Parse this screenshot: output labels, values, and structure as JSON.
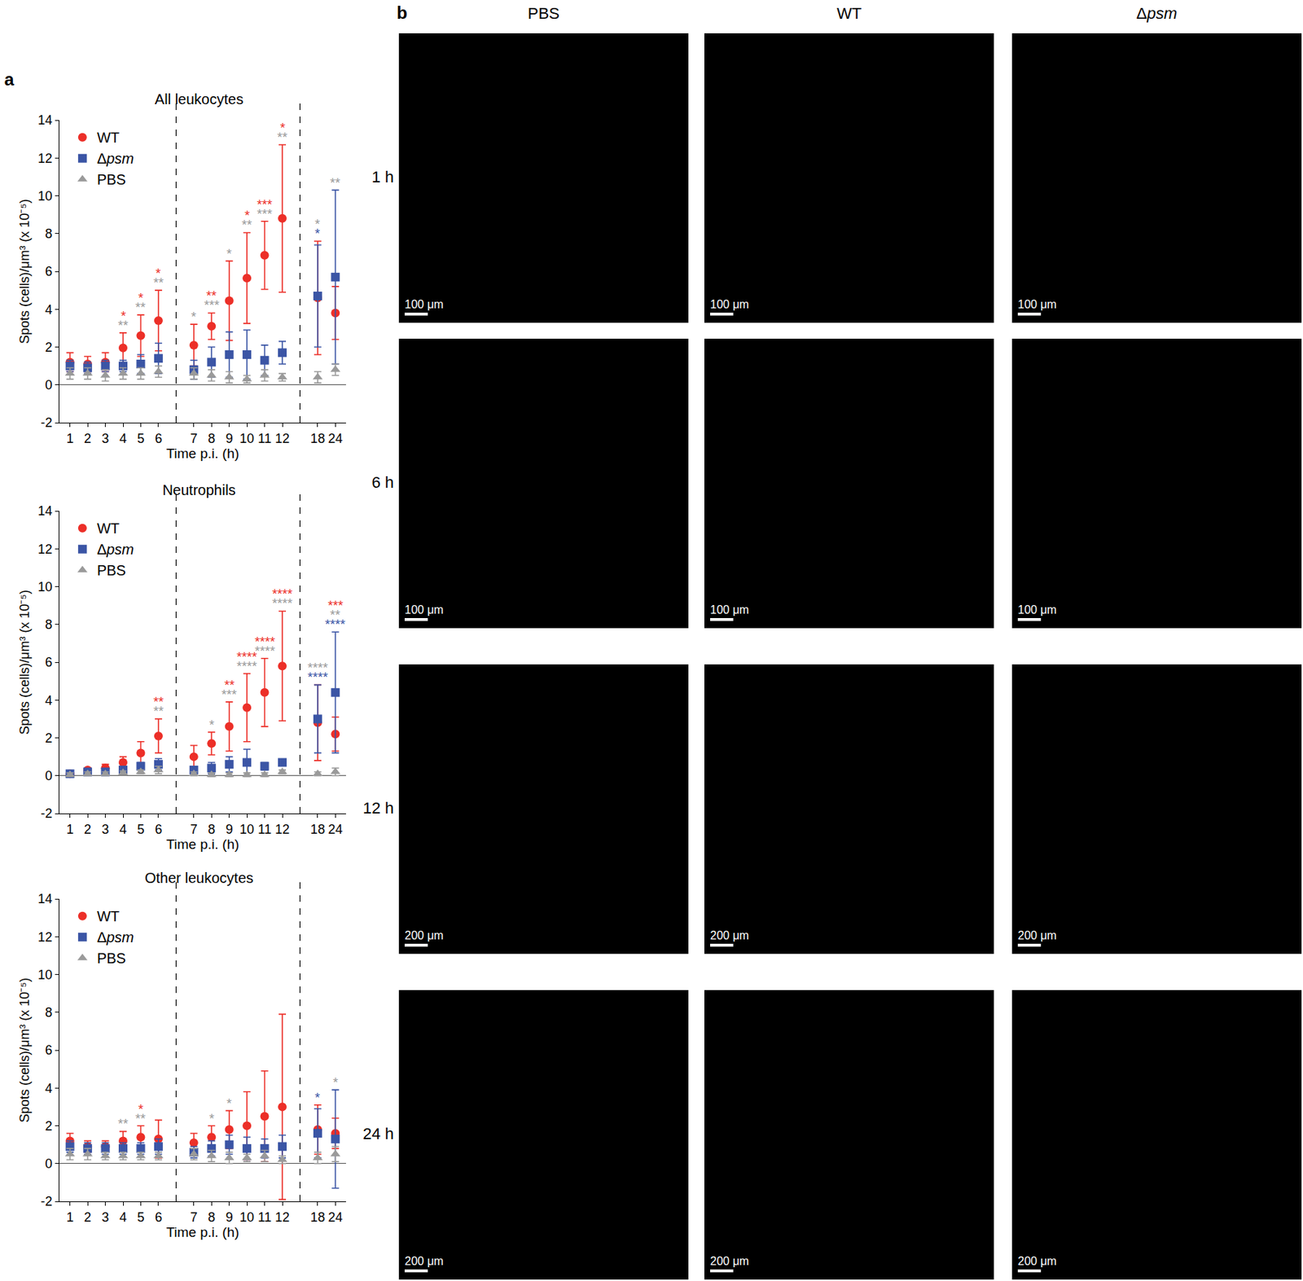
{
  "panel_labels": [
    "a",
    "b"
  ],
  "chart_data": [
    {
      "type": "scatter",
      "title": "All leukocytes",
      "x_label": "Time p.i. (h)",
      "y_label": "Spots (cells)/μm³ (x 10⁻⁵)",
      "categories": [
        "1",
        "2",
        "3",
        "4",
        "5",
        "6",
        null,
        "7",
        "8",
        "9",
        "10",
        "11",
        "12",
        null,
        "18",
        "24"
      ],
      "ylim": [
        -2,
        14
      ],
      "yticks": [
        -2,
        0,
        2,
        4,
        6,
        8,
        10,
        12,
        14
      ],
      "grid": false,
      "legend": "upper left",
      "series": [
        {
          "name": "WT",
          "color": "#ec2f28",
          "marker": "circle",
          "values": [
            1.2,
            1.1,
            1.2,
            1.95,
            2.6,
            3.4,
            null,
            2.1,
            3.1,
            4.45,
            5.65,
            6.85,
            8.8,
            null,
            4.6,
            3.8
          ],
          "errors": [
            0.5,
            0.4,
            0.5,
            0.8,
            1.1,
            1.6,
            null,
            1.1,
            0.7,
            2.1,
            2.4,
            1.8,
            3.9,
            null,
            3.0,
            1.4
          ]
        },
        {
          "name": "Δpsm",
          "color": "#3b55a5",
          "marker": "square",
          "values": [
            1.0,
            0.9,
            1.0,
            1.0,
            1.1,
            1.4,
            null,
            0.8,
            1.2,
            1.6,
            1.6,
            1.3,
            1.7,
            null,
            4.7,
            5.7
          ],
          "errors": [
            0.3,
            0.3,
            0.3,
            0.3,
            0.5,
            0.8,
            null,
            0.5,
            0.8,
            1.2,
            1.3,
            0.8,
            0.6,
            null,
            2.7,
            4.6
          ]
        },
        {
          "name": "PBS",
          "color": "#9a9a9a",
          "marker": "triangle-up",
          "values": [
            0.6,
            0.6,
            0.5,
            0.6,
            0.6,
            0.7,
            null,
            0.6,
            0.5,
            0.4,
            0.3,
            0.5,
            0.4,
            null,
            0.4,
            0.8
          ],
          "errors": [
            0.3,
            0.3,
            0.3,
            0.3,
            0.3,
            0.3,
            null,
            0.3,
            0.3,
            0.3,
            0.2,
            0.3,
            0.2,
            null,
            0.3,
            0.3
          ]
        }
      ],
      "annotations": [
        {
          "x": "4",
          "text": "*",
          "color": "#ec2f28"
        },
        {
          "x": "4",
          "text": "**",
          "color": "#9a9a9a"
        },
        {
          "x": "5",
          "text": "*",
          "color": "#ec2f28"
        },
        {
          "x": "5",
          "text": "**",
          "color": "#9a9a9a"
        },
        {
          "x": "6",
          "text": "*",
          "color": "#ec2f28"
        },
        {
          "x": "6",
          "text": "**",
          "color": "#9a9a9a"
        },
        {
          "x": "7",
          "text": "*",
          "color": "#9a9a9a"
        },
        {
          "x": "8",
          "text": "**",
          "color": "#ec2f28"
        },
        {
          "x": "8",
          "text": "***",
          "color": "#9a9a9a"
        },
        {
          "x": "9",
          "text": "*",
          "color": "#9a9a9a"
        },
        {
          "x": "10",
          "text": "*",
          "color": "#ec2f28"
        },
        {
          "x": "10",
          "text": "**",
          "color": "#9a9a9a"
        },
        {
          "x": "11",
          "text": "***",
          "color": "#ec2f28"
        },
        {
          "x": "11",
          "text": "***",
          "color": "#9a9a9a"
        },
        {
          "x": "12",
          "text": "*",
          "color": "#ec2f28"
        },
        {
          "x": "12",
          "text": "**",
          "color": "#9a9a9a"
        },
        {
          "x": "18",
          "text": "*",
          "color": "#9a9a9a"
        },
        {
          "x": "18",
          "text": "*",
          "color": "#3b55a5"
        },
        {
          "x": "24",
          "text": "**",
          "color": "#9a9a9a"
        }
      ]
    },
    {
      "type": "scatter",
      "title": "Neutrophils",
      "x_label": "Time p.i. (h)",
      "y_label": "Spots (cells)/μm³ (x 10⁻⁵)",
      "categories": [
        "1",
        "2",
        "3",
        "4",
        "5",
        "6",
        null,
        "7",
        "8",
        "9",
        "10",
        "11",
        "12",
        null,
        "18",
        "24"
      ],
      "ylim": [
        -2,
        14
      ],
      "yticks": [
        -2,
        0,
        2,
        4,
        6,
        8,
        10,
        12,
        14
      ],
      "grid": false,
      "legend": "upper left",
      "series": [
        {
          "name": "WT",
          "color": "#ec2f28",
          "marker": "circle",
          "values": [
            0.1,
            0.3,
            0.4,
            0.7,
            1.2,
            2.1,
            null,
            1.0,
            1.7,
            2.6,
            3.6,
            4.4,
            5.8,
            null,
            2.8,
            2.2
          ],
          "errors": [
            0.1,
            0.1,
            0.2,
            0.3,
            0.6,
            0.9,
            null,
            0.6,
            0.6,
            1.3,
            1.8,
            1.8,
            2.9,
            null,
            2.0,
            0.9
          ]
        },
        {
          "name": "Δpsm",
          "color": "#3b55a5",
          "marker": "square",
          "values": [
            0.1,
            0.2,
            0.2,
            0.3,
            0.5,
            0.6,
            null,
            0.3,
            0.4,
            0.6,
            0.7,
            0.5,
            0.7,
            null,
            3.0,
            4.4
          ],
          "errors": [
            0.1,
            0.1,
            0.1,
            0.1,
            0.2,
            0.3,
            null,
            0.2,
            0.3,
            0.4,
            0.7,
            0.2,
            0.1,
            null,
            1.8,
            3.2
          ]
        },
        {
          "name": "PBS",
          "color": "#9a9a9a",
          "marker": "triangle-up",
          "values": [
            0.05,
            0.1,
            0.1,
            0.15,
            0.2,
            0.3,
            null,
            0.1,
            0.05,
            0.05,
            0.05,
            0.05,
            0.2,
            null,
            0.1,
            0.2
          ],
          "errors": [
            0.1,
            0.1,
            0.1,
            0.1,
            0.1,
            0.2,
            null,
            0.1,
            0.1,
            0.1,
            0.1,
            0.1,
            0.1,
            null,
            0.1,
            0.2
          ]
        }
      ],
      "annotations": [
        {
          "x": "6",
          "text": "**",
          "color": "#ec2f28"
        },
        {
          "x": "6",
          "text": "**",
          "color": "#9a9a9a"
        },
        {
          "x": "8",
          "text": "*",
          "color": "#9a9a9a"
        },
        {
          "x": "9",
          "text": "**",
          "color": "#ec2f28"
        },
        {
          "x": "9",
          "text": "***",
          "color": "#9a9a9a"
        },
        {
          "x": "10",
          "text": "****",
          "color": "#ec2f28"
        },
        {
          "x": "10",
          "text": "****",
          "color": "#9a9a9a"
        },
        {
          "x": "11",
          "text": "****",
          "color": "#ec2f28"
        },
        {
          "x": "11",
          "text": "****",
          "color": "#9a9a9a"
        },
        {
          "x": "12",
          "text": "****",
          "color": "#ec2f28"
        },
        {
          "x": "12",
          "text": "****",
          "color": "#9a9a9a"
        },
        {
          "x": "18",
          "text": "****",
          "color": "#9a9a9a"
        },
        {
          "x": "18",
          "text": "****",
          "color": "#3b55a5"
        },
        {
          "x": "24",
          "text": "***",
          "color": "#ec2f28"
        },
        {
          "x": "24",
          "text": "**",
          "color": "#9a9a9a"
        },
        {
          "x": "24",
          "text": "****",
          "color": "#3b55a5"
        }
      ]
    },
    {
      "type": "scatter",
      "title": "Other leukocytes",
      "x_label": "Time p.i. (h)",
      "y_label": "Spots (cells)/μm³ (x 10⁻⁵)",
      "categories": [
        "1",
        "2",
        "3",
        "4",
        "5",
        "6",
        null,
        "7",
        "8",
        "9",
        "10",
        "11",
        "12",
        null,
        "18",
        "24"
      ],
      "ylim": [
        -2,
        14
      ],
      "yticks": [
        -2,
        0,
        2,
        4,
        6,
        8,
        10,
        12,
        14
      ],
      "grid": false,
      "legend": "upper left",
      "series": [
        {
          "name": "WT",
          "color": "#ec2f28",
          "marker": "circle",
          "values": [
            1.2,
            0.9,
            0.9,
            1.2,
            1.4,
            1.3,
            null,
            1.1,
            1.4,
            1.8,
            2.0,
            2.5,
            3.0,
            null,
            1.8,
            1.6
          ],
          "errors": [
            0.4,
            0.3,
            0.3,
            0.5,
            0.6,
            1.0,
            null,
            0.5,
            0.6,
            1.0,
            1.8,
            2.4,
            4.9,
            null,
            1.3,
            0.8
          ]
        },
        {
          "name": "Δpsm",
          "color": "#3b55a5",
          "marker": "square",
          "values": [
            0.9,
            0.8,
            0.8,
            0.8,
            0.8,
            0.9,
            null,
            0.6,
            0.8,
            1.0,
            0.8,
            0.8,
            0.9,
            null,
            1.6,
            1.3
          ],
          "errors": [
            0.3,
            0.3,
            0.3,
            0.3,
            0.3,
            0.4,
            null,
            0.3,
            0.4,
            0.5,
            0.6,
            0.5,
            0.6,
            null,
            1.3,
            2.6
          ]
        },
        {
          "name": "PBS",
          "color": "#9a9a9a",
          "marker": "triangle-up",
          "values": [
            0.5,
            0.5,
            0.4,
            0.4,
            0.4,
            0.4,
            null,
            0.5,
            0.4,
            0.3,
            0.3,
            0.4,
            0.2,
            null,
            0.3,
            0.5
          ],
          "errors": [
            0.3,
            0.3,
            0.2,
            0.2,
            0.2,
            0.2,
            null,
            0.3,
            0.3,
            0.3,
            0.2,
            0.3,
            0.2,
            null,
            0.3,
            0.4
          ]
        }
      ],
      "annotations": [
        {
          "x": "4",
          "text": "**",
          "color": "#9a9a9a"
        },
        {
          "x": "5",
          "text": "*",
          "color": "#ec2f28"
        },
        {
          "x": "5",
          "text": "**",
          "color": "#9a9a9a"
        },
        {
          "x": "8",
          "text": "*",
          "color": "#9a9a9a"
        },
        {
          "x": "9",
          "text": "*",
          "color": "#9a9a9a"
        },
        {
          "x": "18",
          "text": "*",
          "color": "#3b55a5"
        },
        {
          "x": "24",
          "text": "*",
          "color": "#9a9a9a"
        }
      ]
    }
  ],
  "images": {
    "columns": [
      "PBS",
      "WT",
      "Δpsm"
    ],
    "rows": [
      {
        "label": "1 h",
        "scale_bar": "100 μm"
      },
      {
        "label": "6 h",
        "scale_bar": "100 μm"
      },
      {
        "label": "12 h",
        "scale_bar": "200 μm"
      },
      {
        "label": "24 h",
        "scale_bar": "200 μm"
      }
    ]
  }
}
